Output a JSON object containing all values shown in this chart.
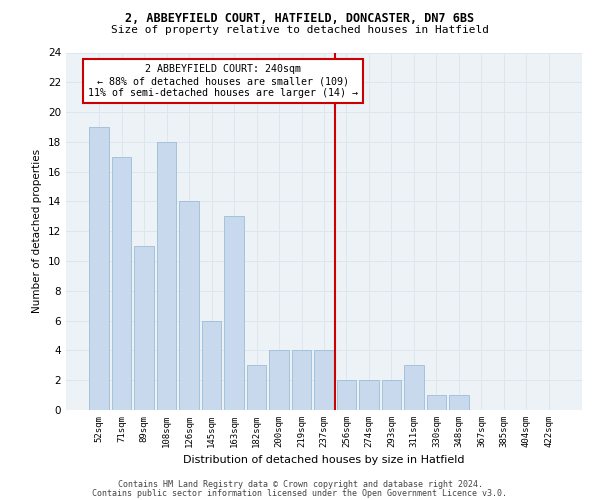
{
  "title1": "2, ABBEYFIELD COURT, HATFIELD, DONCASTER, DN7 6BS",
  "title2": "Size of property relative to detached houses in Hatfield",
  "xlabel": "Distribution of detached houses by size in Hatfield",
  "ylabel": "Number of detached properties",
  "categories": [
    "52sqm",
    "71sqm",
    "89sqm",
    "108sqm",
    "126sqm",
    "145sqm",
    "163sqm",
    "182sqm",
    "200sqm",
    "219sqm",
    "237sqm",
    "256sqm",
    "274sqm",
    "293sqm",
    "311sqm",
    "330sqm",
    "348sqm",
    "367sqm",
    "385sqm",
    "404sqm",
    "422sqm"
  ],
  "values": [
    19,
    17,
    11,
    18,
    14,
    6,
    13,
    3,
    4,
    4,
    4,
    2,
    2,
    2,
    3,
    1,
    1,
    0,
    0,
    0,
    0
  ],
  "bar_color": "#c8d9ee",
  "bar_edge_color": "#9dbdd8",
  "vline_color": "#cc0000",
  "annotation_line1": "2 ABBEYFIELD COURT: 240sqm",
  "annotation_line2": "← 88% of detached houses are smaller (109)",
  "annotation_line3": "11% of semi-detached houses are larger (14) →",
  "annotation_box_color": "white",
  "annotation_box_edge_color": "#cc0000",
  "ylim": [
    0,
    24
  ],
  "yticks": [
    0,
    2,
    4,
    6,
    8,
    10,
    12,
    14,
    16,
    18,
    20,
    22,
    24
  ],
  "footer1": "Contains HM Land Registry data © Crown copyright and database right 2024.",
  "footer2": "Contains public sector information licensed under the Open Government Licence v3.0.",
  "grid_color": "#dde6ef",
  "bg_color": "#edf2f7",
  "vline_idx": 10.5
}
